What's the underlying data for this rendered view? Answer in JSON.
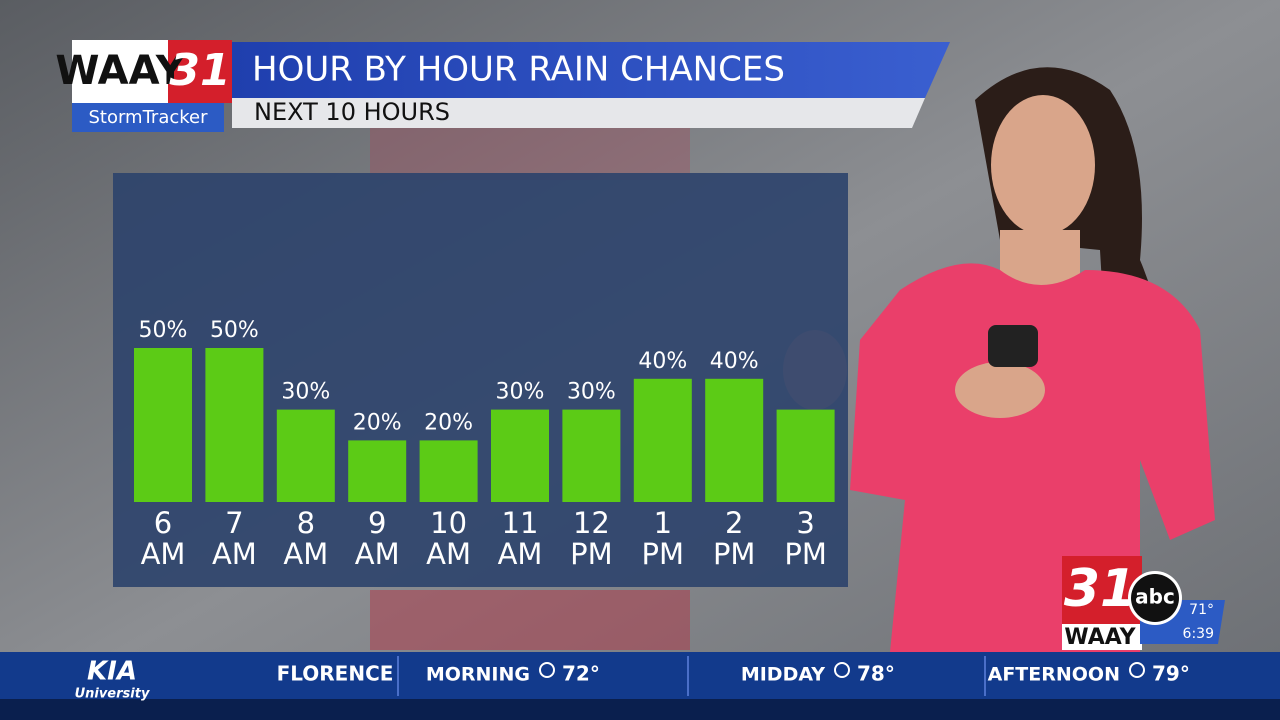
{
  "chart_data": {
    "type": "bar",
    "title": "HOUR BY HOUR RAIN CHANCES",
    "subtitle": "NEXT 10 HOURS",
    "categories": [
      [
        "6",
        "AM"
      ],
      [
        "7",
        "AM"
      ],
      [
        "8",
        "AM"
      ],
      [
        "9",
        "AM"
      ],
      [
        "10",
        "AM"
      ],
      [
        "11",
        "AM"
      ],
      [
        "12",
        "PM"
      ],
      [
        "1",
        "PM"
      ],
      [
        "2",
        "PM"
      ],
      [
        "3",
        "PM"
      ]
    ],
    "values": [
      50,
      50,
      30,
      20,
      20,
      30,
      30,
      40,
      40,
      30
    ],
    "value_labels": [
      "50%",
      "50%",
      "30%",
      "20%",
      "20%",
      "30%",
      "30%",
      "40%",
      "40%",
      null
    ],
    "color": "#5ccb16"
  },
  "logo": {
    "name": "WAAY",
    "number": "31",
    "tag": "StormTracker"
  },
  "bug": {
    "number": "31",
    "name": "WAAY",
    "network": "abc",
    "temperature": "71°",
    "time": "6:39"
  },
  "ticker": {
    "sponsor": "KIA",
    "sponsor_tag": "University",
    "city": "FLORENCE",
    "items": [
      {
        "label": "MORNING",
        "temp": "72°"
      },
      {
        "label": "MIDDAY",
        "temp": "78°"
      },
      {
        "label": "AFTERNOON",
        "temp": "79°"
      }
    ]
  }
}
